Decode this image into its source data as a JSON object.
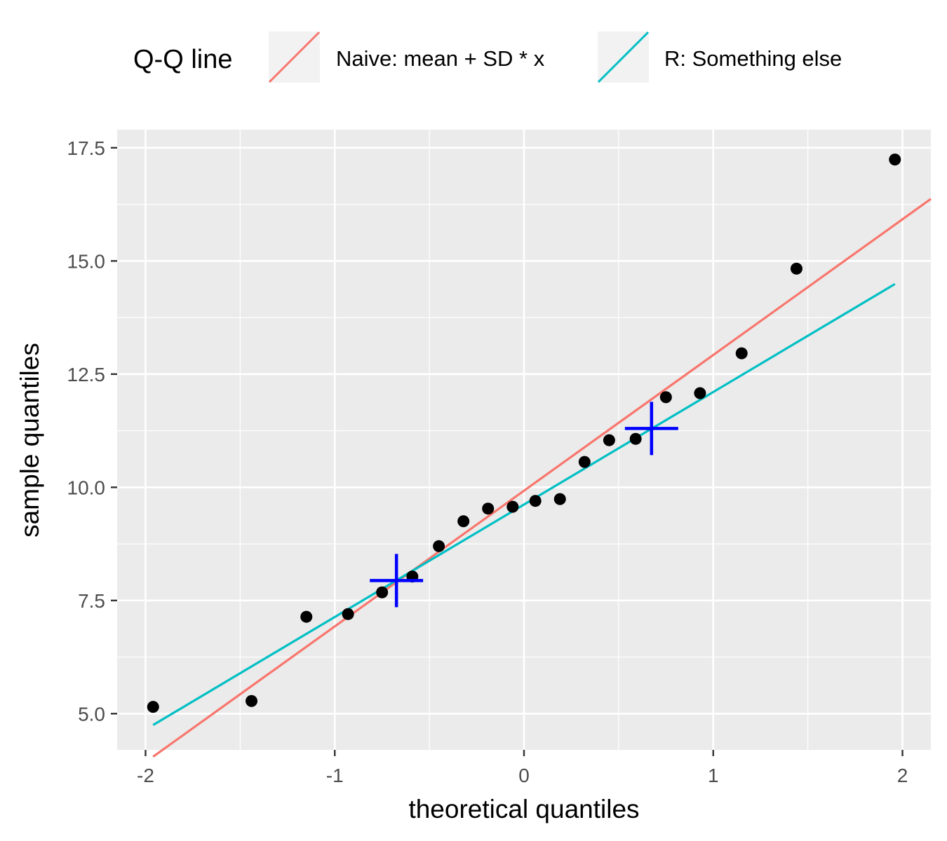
{
  "chart_data": {
    "type": "scatter",
    "title": "",
    "xlabel": "theoretical quantiles",
    "ylabel": "sample quantiles",
    "xlim": [
      -2.15,
      2.15
    ],
    "ylim": [
      4.2,
      17.9
    ],
    "x_ticks": [
      -2,
      -1,
      0,
      1,
      2
    ],
    "x_tick_labels": [
      "-2",
      "-1",
      "0",
      "1",
      "2"
    ],
    "y_ticks": [
      5.0,
      7.5,
      10.0,
      12.5,
      15.0,
      17.5
    ],
    "y_tick_labels": [
      "5.0",
      "7.5",
      "10.0",
      "12.5",
      "15.0",
      "17.5"
    ],
    "grid": true,
    "points": {
      "x": [
        -1.96,
        -1.44,
        -1.15,
        -0.93,
        -0.75,
        -0.59,
        -0.45,
        -0.32,
        -0.19,
        -0.06,
        0.06,
        0.19,
        0.32,
        0.45,
        0.59,
        0.75,
        0.93,
        1.15,
        1.44,
        1.96
      ],
      "y": [
        5.15,
        5.28,
        7.14,
        7.2,
        7.68,
        8.03,
        8.7,
        9.25,
        9.53,
        9.57,
        9.7,
        9.74,
        10.56,
        11.04,
        11.07,
        11.99,
        12.08,
        12.96,
        14.83,
        17.24
      ],
      "color": "#000000"
    },
    "markers": {
      "x": [
        -0.674,
        0.674
      ],
      "y": [
        7.94,
        11.3
      ],
      "color": "#0000ff"
    },
    "series": [
      {
        "name": "Naive: mean + SD * x",
        "x": [
          -1.96,
          2.15
        ],
        "y": [
          4.05,
          16.37
        ],
        "color": "#f8766d"
      },
      {
        "name": "R: Something else",
        "x": [
          -1.96,
          1.96
        ],
        "y": [
          4.75,
          14.49
        ],
        "color": "#00bfc4"
      }
    ],
    "legend": {
      "title": "Q-Q line",
      "position": "top"
    }
  }
}
